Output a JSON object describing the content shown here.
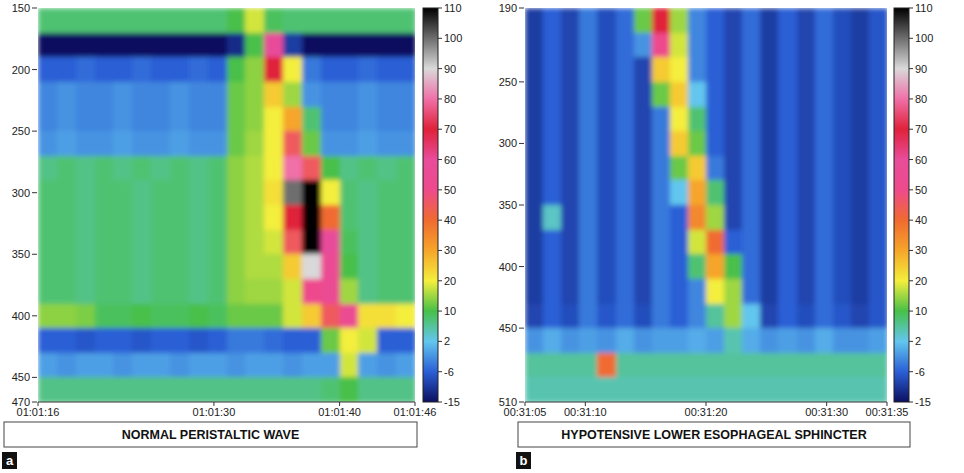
{
  "chart_data": [
    {
      "type": "heatmap",
      "title": "NORMAL PERISTALTIC WAVE",
      "panel_label": "a",
      "xlim": [
        3676,
        3706
      ],
      "xticks": [
        {
          "value": 3676,
          "label": "01:01:16"
        },
        {
          "value": 3690,
          "label": "01:01:30"
        },
        {
          "value": 3700,
          "label": "01:01:40"
        },
        {
          "value": 3706,
          "label": "01:01:46"
        }
      ],
      "ylim": [
        470,
        150
      ],
      "yticks": [
        150,
        200,
        250,
        300,
        350,
        400,
        450,
        470
      ],
      "x_edges": [
        3676,
        3677.5,
        3679,
        3680.5,
        3682,
        3683.5,
        3685,
        3686.5,
        3688,
        3689.5,
        3691,
        3692.5,
        3694,
        3695.5,
        3697,
        3698.5,
        3700,
        3701.5,
        3703,
        3704.5,
        3706
      ],
      "y_edges": [
        150,
        170,
        190,
        210,
        230,
        250,
        270,
        290,
        310,
        330,
        350,
        370,
        390,
        410,
        430,
        450,
        470
      ],
      "cells": [
        [
          8,
          8,
          8,
          8,
          8,
          8,
          8,
          8,
          8,
          8,
          10,
          18,
          9,
          8,
          8,
          8,
          8,
          8,
          8,
          8
        ],
        [
          -15,
          -15,
          -15,
          -15,
          -15,
          -15,
          -15,
          -15,
          -15,
          -15,
          -12,
          10,
          60,
          -10,
          -15,
          -15,
          -15,
          -15,
          -15,
          -15
        ],
        [
          -6,
          -6,
          -5,
          -6,
          -6,
          -5,
          -6,
          -6,
          -5,
          -6,
          10,
          14,
          70,
          20,
          -4,
          -6,
          -6,
          -5,
          -6,
          -6
        ],
        [
          -3,
          -2,
          -3,
          -3,
          -2,
          -3,
          -3,
          -2,
          -3,
          -3,
          12,
          14,
          25,
          15,
          -2,
          -3,
          -3,
          -2,
          -3,
          -3
        ],
        [
          -3,
          -2,
          -3,
          -3,
          -2,
          -3,
          -3,
          -2,
          -3,
          -3,
          12,
          14,
          20,
          30,
          8,
          -3,
          -3,
          -2,
          -3,
          -3
        ],
        [
          -2,
          -1,
          -2,
          -2,
          -1,
          -2,
          -2,
          -1,
          -2,
          -2,
          12,
          15,
          20,
          45,
          12,
          -2,
          -2,
          -1,
          -2,
          -2
        ],
        [
          7,
          8,
          7,
          8,
          7,
          8,
          7,
          8,
          7,
          8,
          14,
          16,
          20,
          80,
          45,
          10,
          7,
          8,
          7,
          8
        ],
        [
          8,
          8,
          7,
          8,
          8,
          7,
          8,
          8,
          7,
          8,
          14,
          16,
          22,
          100,
          110,
          20,
          8,
          7,
          8,
          8
        ],
        [
          8,
          8,
          7,
          8,
          8,
          7,
          8,
          8,
          7,
          8,
          14,
          16,
          20,
          70,
          110,
          40,
          8,
          7,
          8,
          8
        ],
        [
          8,
          8,
          7,
          8,
          8,
          7,
          8,
          8,
          7,
          8,
          14,
          16,
          18,
          45,
          110,
          60,
          9,
          7,
          8,
          8
        ],
        [
          8,
          8,
          7,
          8,
          8,
          7,
          8,
          8,
          7,
          8,
          14,
          16,
          16,
          25,
          90,
          55,
          10,
          7,
          8,
          8
        ],
        [
          8,
          8,
          7,
          8,
          8,
          7,
          8,
          8,
          7,
          8,
          14,
          15,
          15,
          18,
          50,
          55,
          15,
          7,
          8,
          8
        ],
        [
          14,
          14,
          13,
          9,
          9,
          10,
          9,
          9,
          10,
          9,
          12,
          12,
          12,
          18,
          25,
          45,
          55,
          22,
          22,
          20
        ],
        [
          -6,
          -6,
          -7,
          -6,
          -6,
          -7,
          -6,
          -6,
          -7,
          -6,
          -4,
          -4,
          -5,
          -6,
          -6,
          12,
          20,
          18,
          -6,
          -6
        ],
        [
          -1,
          -2,
          -1,
          -1,
          -2,
          -1,
          -1,
          -2,
          -1,
          -1,
          -2,
          -1,
          -1,
          -2,
          -1,
          -1,
          18,
          -1,
          -2,
          -1
        ],
        [
          7,
          7,
          7,
          7,
          7,
          7,
          7,
          7,
          7,
          7,
          7,
          7,
          7,
          7,
          7,
          8,
          10,
          7,
          7,
          7
        ]
      ],
      "colorbar_range": [
        -15,
        110
      ],
      "colorbar_ticks": [
        110,
        100,
        90,
        80,
        70,
        60,
        50,
        40,
        30,
        20,
        10,
        2,
        -6,
        -15
      ]
    },
    {
      "type": "heatmap",
      "title": "HYPOTENSIVE LOWER ESOPHAGEAL SPHINCTER",
      "panel_label": "b",
      "xlim": [
        1865,
        1895
      ],
      "xticks": [
        {
          "value": 1865,
          "label": "00:31:05"
        },
        {
          "value": 1870,
          "label": "00:31:10"
        },
        {
          "value": 1880,
          "label": "00:31:20"
        },
        {
          "value": 1890,
          "label": "00:31:30"
        },
        {
          "value": 1895,
          "label": "00:31:35"
        }
      ],
      "ylim": [
        510,
        190
      ],
      "yticks": [
        190,
        250,
        300,
        350,
        400,
        450,
        510
      ],
      "x_edges": [
        1865,
        1866.5,
        1868,
        1869.5,
        1871,
        1872.5,
        1874,
        1875.5,
        1877,
        1878.5,
        1880,
        1881.5,
        1883,
        1884.5,
        1886,
        1887.5,
        1889,
        1890.5,
        1892,
        1893.5,
        1895
      ],
      "y_edges": [
        190,
        210,
        230,
        250,
        270,
        290,
        310,
        330,
        350,
        370,
        390,
        410,
        430,
        450,
        470,
        490,
        510
      ],
      "cells": [
        [
          -10,
          -6,
          -9,
          -4,
          -8,
          -5,
          12,
          70,
          15,
          -3,
          -6,
          -9,
          -5,
          -10,
          -6,
          -9,
          -5,
          -8,
          -10,
          -7
        ],
        [
          -10,
          -6,
          -9,
          -4,
          -8,
          -5,
          -2,
          50,
          18,
          -3,
          -6,
          -9,
          -5,
          -10,
          -6,
          -9,
          -5,
          -8,
          -10,
          -7
        ],
        [
          -10,
          -6,
          -9,
          -4,
          -8,
          -5,
          -9,
          25,
          20,
          -3,
          -6,
          -9,
          -5,
          -10,
          -6,
          -9,
          -5,
          -8,
          -10,
          -7
        ],
        [
          -10,
          -6,
          -9,
          -4,
          -8,
          -5,
          -9,
          12,
          25,
          2,
          -6,
          -9,
          -5,
          -10,
          -6,
          -9,
          -5,
          -8,
          -10,
          -7
        ],
        [
          -10,
          -6,
          -9,
          -4,
          -8,
          -5,
          -9,
          -4,
          20,
          8,
          -6,
          -9,
          -5,
          -10,
          -6,
          -9,
          -5,
          -8,
          -10,
          -7
        ],
        [
          -10,
          -6,
          -9,
          -4,
          -8,
          -5,
          -9,
          -4,
          25,
          12,
          -6,
          -9,
          -5,
          -10,
          -6,
          -9,
          -5,
          -8,
          -10,
          -7
        ],
        [
          -10,
          -6,
          -9,
          -4,
          -8,
          -5,
          -9,
          -4,
          12,
          25,
          -4,
          -9,
          -5,
          -10,
          -6,
          -9,
          -5,
          -8,
          -10,
          -7
        ],
        [
          -10,
          -6,
          -9,
          -4,
          -8,
          -5,
          -9,
          -4,
          2,
          30,
          8,
          -9,
          -5,
          -10,
          -6,
          -9,
          -5,
          -8,
          -10,
          -7
        ],
        [
          -10,
          4,
          -9,
          -4,
          -8,
          -5,
          -9,
          -4,
          -6,
          35,
          15,
          -9,
          -5,
          -10,
          -6,
          -9,
          -5,
          -8,
          -10,
          -7
        ],
        [
          -10,
          -6,
          -9,
          -4,
          -8,
          -5,
          -9,
          -4,
          -6,
          18,
          40,
          -6,
          -5,
          -10,
          -6,
          -9,
          -5,
          -8,
          -10,
          -7
        ],
        [
          -10,
          -6,
          -9,
          -4,
          -8,
          -5,
          -9,
          -4,
          -6,
          8,
          30,
          10,
          -5,
          -10,
          -6,
          -9,
          -5,
          -8,
          -10,
          -7
        ],
        [
          -10,
          -6,
          -9,
          -4,
          -8,
          -5,
          -9,
          -4,
          -6,
          -3,
          20,
          15,
          -5,
          -10,
          -6,
          -9,
          -5,
          -8,
          -10,
          -7
        ],
        [
          -9,
          -6,
          -8,
          -4,
          -7,
          -5,
          -8,
          -4,
          -6,
          -3,
          6,
          15,
          2,
          -9,
          -6,
          -8,
          -5,
          -7,
          -9,
          -7
        ],
        [
          -2,
          0,
          -2,
          -1,
          -2,
          0,
          -2,
          -1,
          -1,
          0,
          -1,
          5,
          0,
          -2,
          -1,
          -2,
          0,
          -2,
          -2,
          -1
        ],
        [
          6,
          6,
          6,
          6,
          40,
          6,
          6,
          6,
          6,
          6,
          6,
          6,
          6,
          6,
          6,
          6,
          6,
          6,
          6,
          6
        ],
        [
          5,
          5,
          5,
          5,
          5,
          5,
          5,
          5,
          5,
          5,
          5,
          5,
          5,
          5,
          5,
          5,
          5,
          5,
          5,
          5
        ]
      ],
      "colorbar_range": [
        -15,
        110
      ],
      "colorbar_ticks": [
        110,
        100,
        90,
        80,
        70,
        60,
        50,
        40,
        30,
        20,
        10,
        2,
        -6,
        -15
      ]
    }
  ]
}
